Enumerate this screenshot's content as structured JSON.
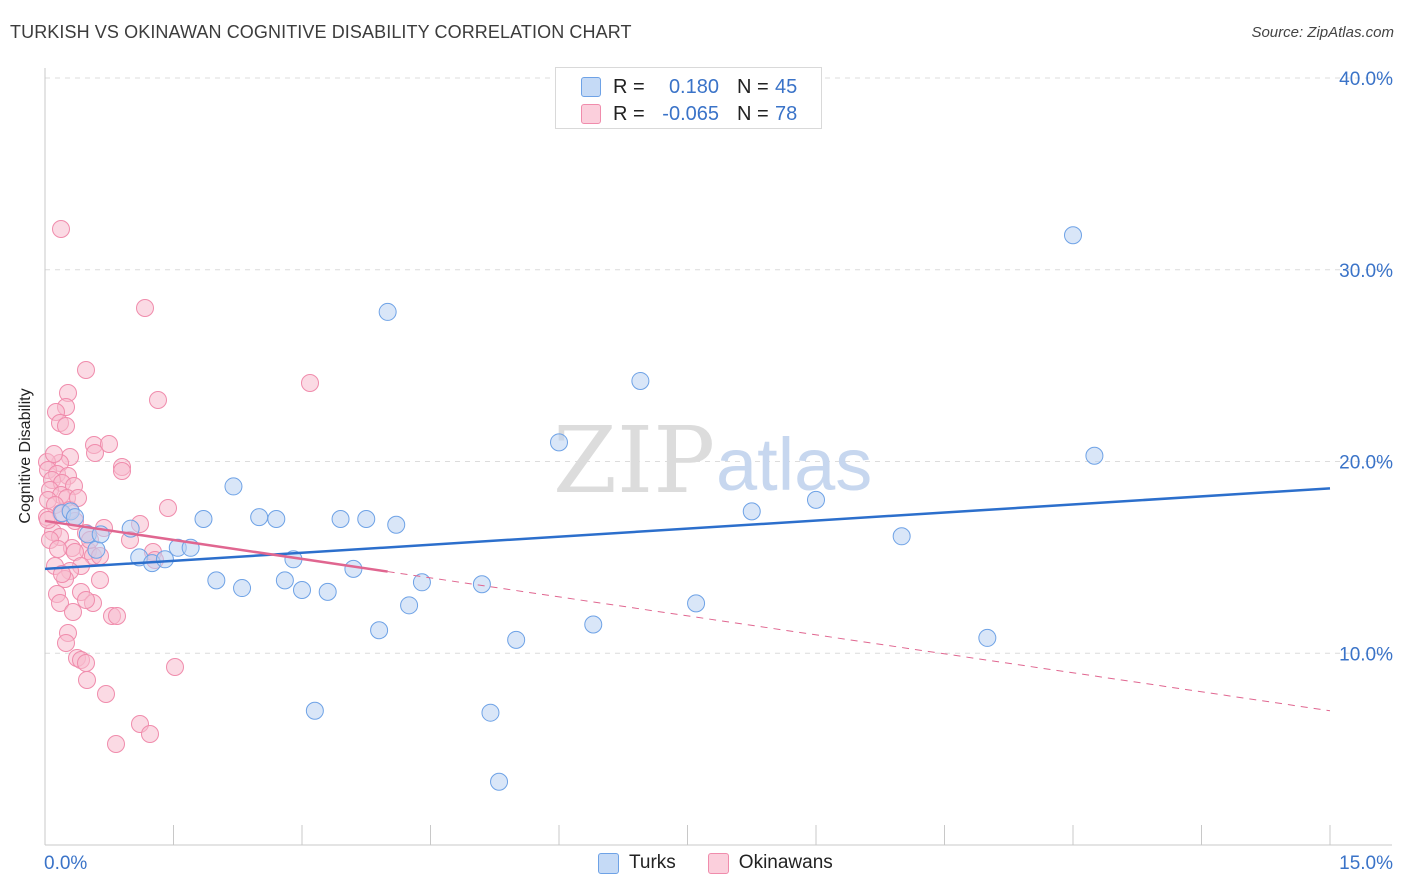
{
  "title": "TURKISH VS OKINAWAN COGNITIVE DISABILITY CORRELATION CHART",
  "source": "Source: ZipAtlas.com",
  "watermark": {
    "zip": "ZIP",
    "atlas": "atlas"
  },
  "legend_top": {
    "rows": [
      {
        "r_label": "R =",
        "r_value": "0.180",
        "n_label": "N =",
        "n_value": "45",
        "color": "#6ea2e6"
      },
      {
        "r_label": "R =",
        "r_value": "-0.065",
        "n_label": "N =",
        "n_value": "78",
        "color": "#f08cac"
      }
    ]
  },
  "legend_bottom": {
    "items": [
      {
        "label": "Turks",
        "color": "#6ea2e6"
      },
      {
        "label": "Okinawans",
        "color": "#f08cac"
      }
    ]
  },
  "chart_data": {
    "type": "scatter",
    "title": "TURKISH VS OKINAWAN COGNITIVE DISABILITY CORRELATION CHART",
    "xlabel": "",
    "ylabel": "Cognitive Disability",
    "xlim": [
      0,
      15
    ],
    "ylim": [
      0,
      40
    ],
    "x_tick_labels": [
      "0.0%",
      "15.0%"
    ],
    "y_tick_labels": [
      "10.0%",
      "20.0%",
      "30.0%",
      "40.0%"
    ],
    "y_ticks": [
      10,
      20,
      30,
      40
    ],
    "grid": true,
    "series": [
      {
        "name": "Turks",
        "color": "#6ea2e6",
        "line_color": "#2c6fcc",
        "r": 0.18,
        "n": 45,
        "trend": {
          "x": [
            0,
            15
          ],
          "y": [
            14.4,
            18.6
          ],
          "dashed_from": null
        },
        "points": [
          [
            0.2,
            17.3
          ],
          [
            0.3,
            17.4
          ],
          [
            0.35,
            17.1
          ],
          [
            0.5,
            16.2
          ],
          [
            0.6,
            15.4
          ],
          [
            1.0,
            16.5
          ],
          [
            1.1,
            15.0
          ],
          [
            1.25,
            14.7
          ],
          [
            1.4,
            14.9
          ],
          [
            1.55,
            15.5
          ],
          [
            1.7,
            15.5
          ],
          [
            1.85,
            17.0
          ],
          [
            2.0,
            13.8
          ],
          [
            2.2,
            18.7
          ],
          [
            2.3,
            13.4
          ],
          [
            2.5,
            17.1
          ],
          [
            2.7,
            17.0
          ],
          [
            2.8,
            13.8
          ],
          [
            2.9,
            14.9
          ],
          [
            3.0,
            13.3
          ],
          [
            3.15,
            7.0
          ],
          [
            3.3,
            13.2
          ],
          [
            3.45,
            17.0
          ],
          [
            3.6,
            14.4
          ],
          [
            3.75,
            17.0
          ],
          [
            3.9,
            11.2
          ],
          [
            4.0,
            27.8
          ],
          [
            4.1,
            16.7
          ],
          [
            4.25,
            12.5
          ],
          [
            4.4,
            13.7
          ],
          [
            5.1,
            13.6
          ],
          [
            5.2,
            6.9
          ],
          [
            5.5,
            10.7
          ],
          [
            6.0,
            21.0
          ],
          [
            6.4,
            11.5
          ],
          [
            6.95,
            24.2
          ],
          [
            7.6,
            12.6
          ],
          [
            8.25,
            17.4
          ],
          [
            9.0,
            18.0
          ],
          [
            10.0,
            16.1
          ],
          [
            11.0,
            10.8
          ],
          [
            12.0,
            31.8
          ],
          [
            12.25,
            20.3
          ],
          [
            5.3,
            3.3
          ],
          [
            0.65,
            16.2
          ]
        ]
      },
      {
        "name": "Okinawans",
        "color": "#f08cac",
        "line_color": "#e06690",
        "r": -0.065,
        "n": 78,
        "trend": {
          "x": [
            0,
            15
          ],
          "y": [
            16.9,
            7.0
          ],
          "dashed_from": 4
        }
      }
    ]
  }
}
